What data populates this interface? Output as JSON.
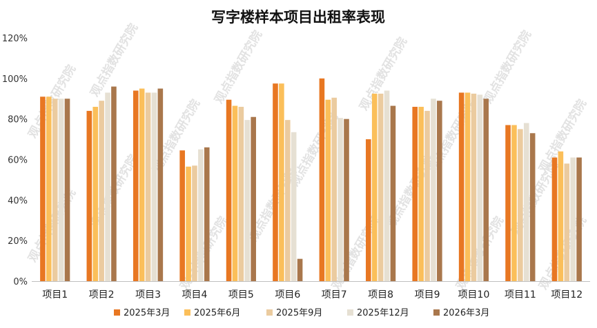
{
  "chart_data": {
    "type": "bar",
    "title": "写字楼样本项目出租率表现",
    "categories": [
      "项目1",
      "项目2",
      "项目3",
      "项目4",
      "项目5",
      "项目6",
      "项目7",
      "项目8",
      "项目9",
      "项目10",
      "项目11",
      "项目12"
    ],
    "series": [
      {
        "name": "2025年3月",
        "color": "#E87722",
        "values": [
          91,
          84,
          94,
          64.5,
          89.5,
          97.5,
          100,
          70,
          86,
          93,
          77,
          61
        ]
      },
      {
        "name": "2025年6月",
        "color": "#FBBF5A",
        "values": [
          91,
          86,
          95,
          56.5,
          86.5,
          97.5,
          89.5,
          92.5,
          86,
          93,
          77,
          64
        ]
      },
      {
        "name": "2025年9月",
        "color": "#EBCB9F",
        "values": [
          90,
          89,
          93,
          57,
          86,
          79.5,
          90.5,
          92.5,
          84,
          92.5,
          75,
          58
        ]
      },
      {
        "name": "2025年12月",
        "color": "#E6E0D3",
        "values": [
          90,
          93,
          93,
          65,
          79.5,
          73.5,
          80.5,
          94,
          90,
          92,
          78,
          61
        ]
      },
      {
        "name": "2026年3月",
        "color": "#A9774C",
        "values": [
          90,
          96,
          95,
          66,
          81,
          11,
          80,
          86.5,
          89,
          90,
          73,
          61
        ]
      }
    ],
    "yticks": [
      "0%",
      "20%",
      "40%",
      "60%",
      "80%",
      "100%",
      "120%"
    ],
    "ylim": [
      0,
      120
    ],
    "xlabel": "",
    "ylabel": "",
    "grid": false,
    "legend_position": "bottom",
    "watermark": "观点指数研究院"
  }
}
